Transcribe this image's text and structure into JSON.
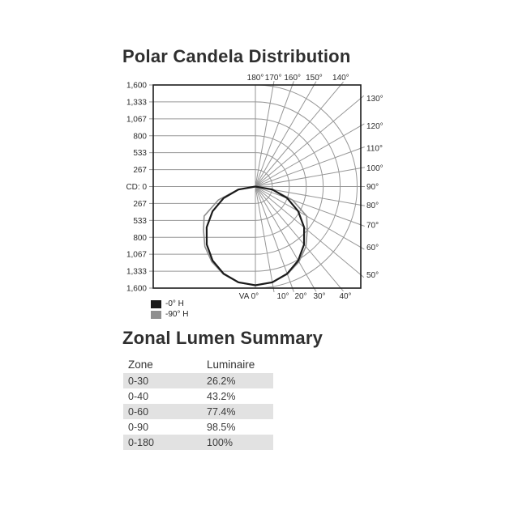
{
  "accent_colors": {
    "curve_0h": "#1a1a1a",
    "curve_90h": "#8f8f8f",
    "grid": "#969696",
    "table_row_alt": "#e2e2e2"
  },
  "chart_data": [
    {
      "type": "polar",
      "title": "Polar Candela Distribution",
      "radial_axis": {
        "unit": "candela",
        "max": 1600,
        "tick_labels_vertical": [
          "1,600",
          "1,333",
          "1,067",
          "800",
          "533",
          "267",
          "CD: 0",
          "267",
          "533",
          "800",
          "1,067",
          "1,333",
          "1,600"
        ]
      },
      "angle_labels": {
        "top": [
          "180°",
          "170°",
          "160°",
          "150°",
          "140°"
        ],
        "right": [
          "130°",
          "120°",
          "110°",
          "100°",
          "90°",
          "80°",
          "70°",
          "60°",
          "50°"
        ],
        "bottom": [
          "VA 0°",
          "10°",
          "20°",
          "30°",
          "40°"
        ]
      },
      "grid": {
        "angle_step_deg": 10,
        "radial_step_cd": 267
      },
      "legend_position": "bottom-left",
      "series": [
        {
          "name": "-0° H",
          "color": "#1a1a1a",
          "angles": [
            0,
            10,
            20,
            30,
            40,
            50,
            60,
            70,
            80,
            90
          ],
          "candela": [
            1555,
            1531,
            1461,
            1347,
            1191,
            1000,
            778,
            532,
            270,
            0
          ]
        },
        {
          "name": "-90° H",
          "color": "#8f8f8f",
          "angles": [
            0,
            10,
            20,
            30,
            40,
            50,
            60,
            70,
            80,
            90
          ],
          "candela": [
            1555,
            1535,
            1470,
            1370,
            1235,
            1065,
            930,
            620,
            280,
            0
          ]
        }
      ]
    },
    {
      "type": "table",
      "title": "Zonal Lumen Summary",
      "columns": [
        "Zone",
        "Luminaire"
      ],
      "rows": [
        [
          "0-30",
          "26.2%"
        ],
        [
          "0-40",
          "43.2%"
        ],
        [
          "0-60",
          "77.4%"
        ],
        [
          "0-90",
          "98.5%"
        ],
        [
          "0-180",
          "100%"
        ]
      ]
    }
  ]
}
